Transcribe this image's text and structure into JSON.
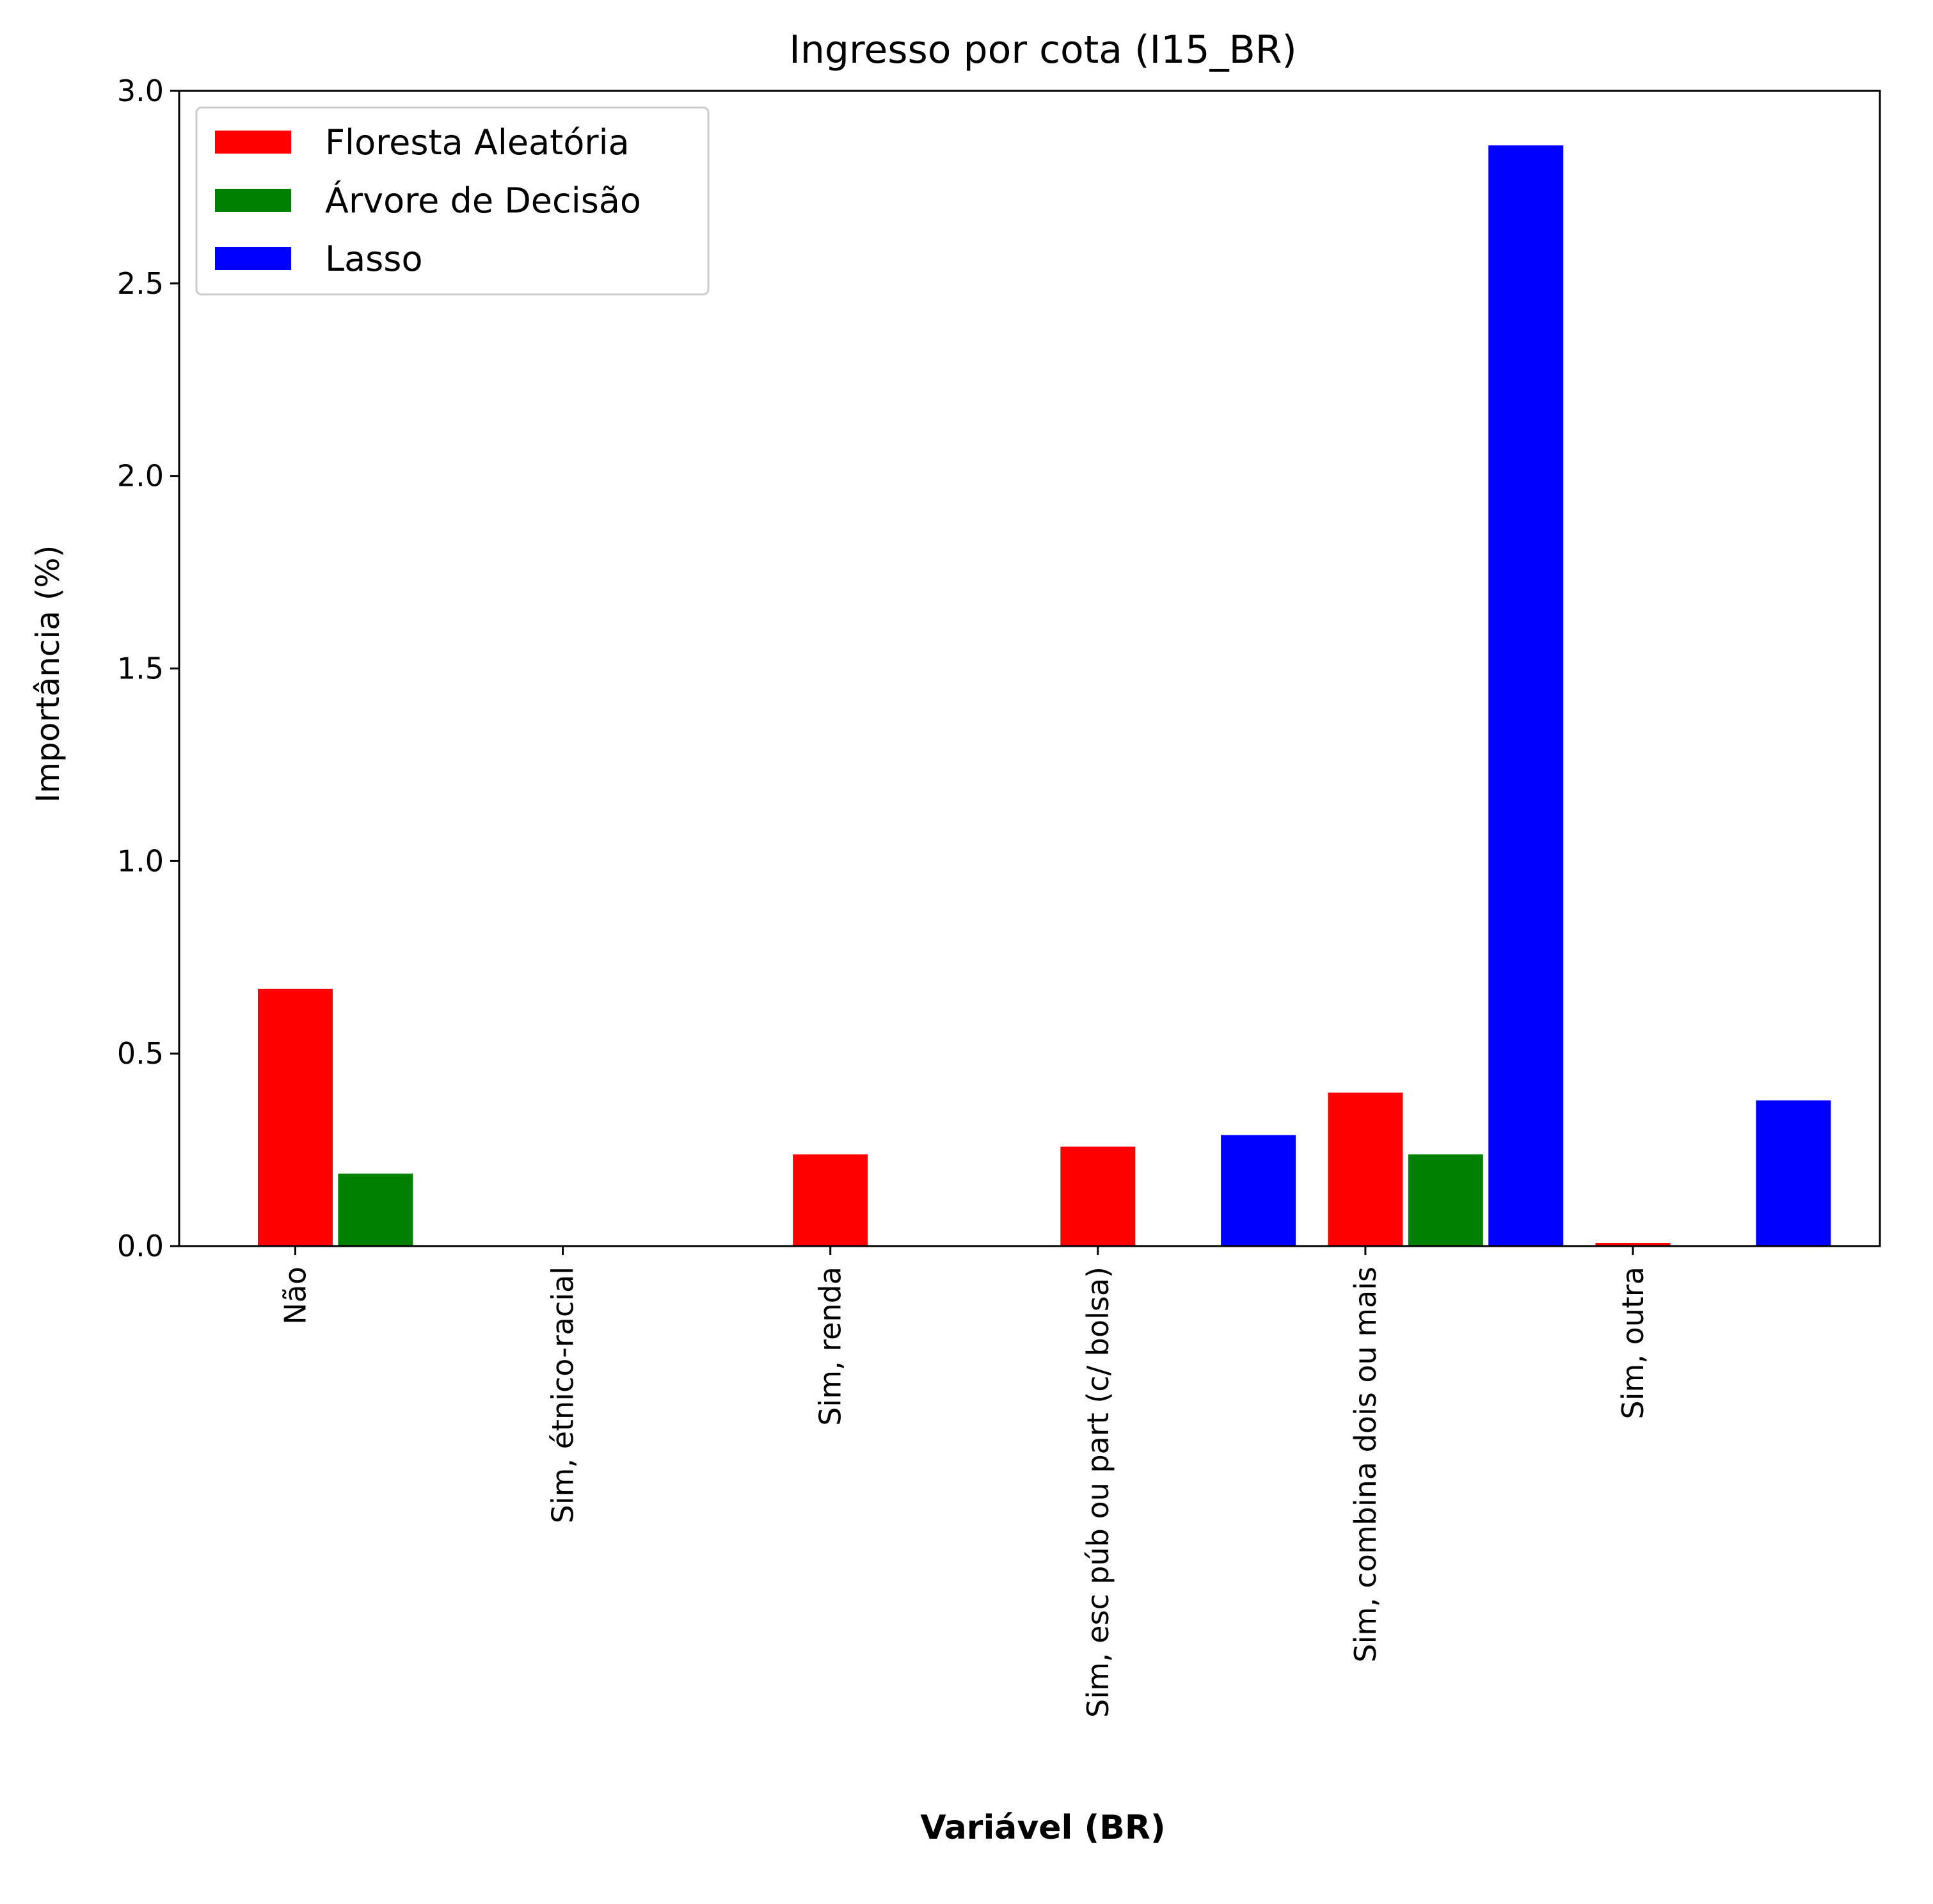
{
  "chart_data": {
    "type": "bar",
    "title": "Ingresso por cota (I15_BR)",
    "xlabel": "Variável (BR)",
    "ylabel": "Importância (%)",
    "ylim": [
      0,
      3.0
    ],
    "yticks": [
      "0.0",
      "0.5",
      "1.0",
      "1.5",
      "2.0",
      "2.5",
      "3.0"
    ],
    "categories": [
      "Não",
      "Sim, étnico-racial",
      "Sim, renda",
      "Sim, esc púb ou part (c/ bolsa)",
      "Sim, combina dois ou mais",
      "Sim, outra"
    ],
    "grid": false,
    "legend_position": "top-left",
    "series": [
      {
        "name": "Floresta Aleatória",
        "color": "#ff0000",
        "values": [
          0.67,
          0.0,
          0.24,
          0.26,
          0.4,
          0.01
        ]
      },
      {
        "name": "Árvore de Decisão",
        "color": "#008000",
        "values": [
          0.19,
          0.0,
          0.0,
          0.0,
          0.24,
          0.0
        ]
      },
      {
        "name": "Lasso",
        "color": "#0000ff",
        "values": [
          0.0,
          0.0,
          0.0,
          0.29,
          2.86,
          0.38
        ]
      }
    ]
  }
}
